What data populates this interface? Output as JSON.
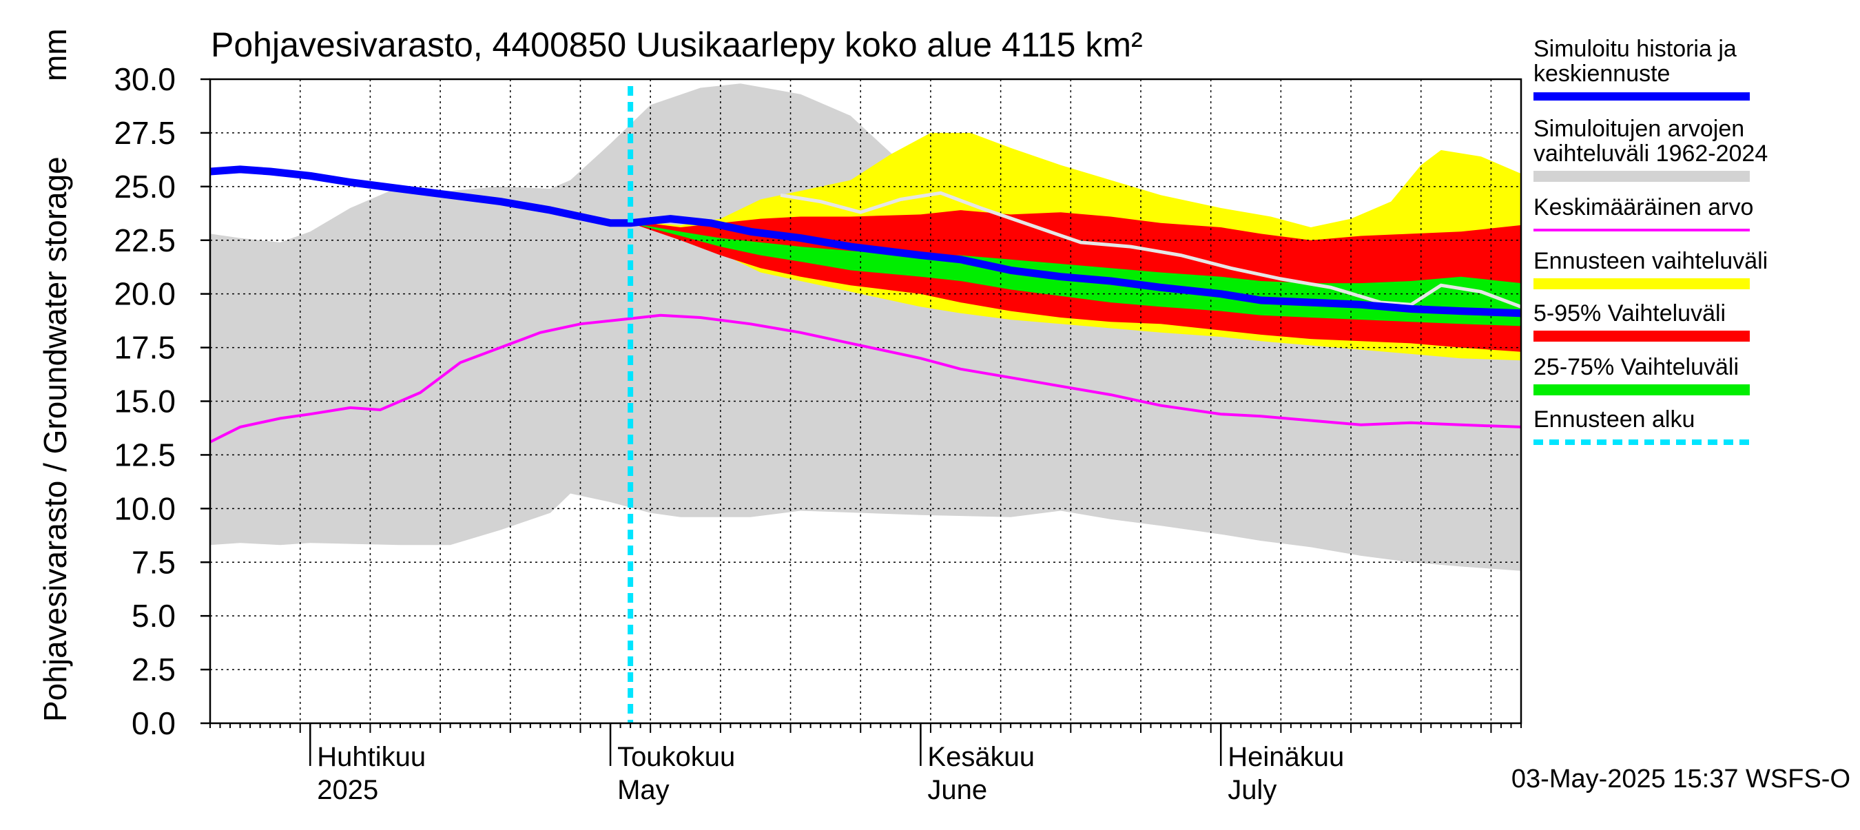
{
  "chart_data": {
    "type": "area",
    "title": "Pohjavesivarasto, 4400850 Uusikaarlepy koko alue 4115 km²",
    "ylabel": "Pohjavesivarasto / Groundwater storage",
    "yunit": "mm",
    "ylim": [
      0,
      30
    ],
    "yticks": [
      "0.0",
      "2.5",
      "5.0",
      "7.5",
      "10.0",
      "12.5",
      "15.0",
      "17.5",
      "20.0",
      "22.5",
      "25.0",
      "27.5",
      "30.0"
    ],
    "xlim": [
      "2025-03-22",
      "2025-07-31"
    ],
    "x_labels": [
      {
        "date": "2025-04-01",
        "line1": "Huhtikuu",
        "line2": "2025"
      },
      {
        "date": "2025-05-01",
        "line1": "Toukokuu",
        "line2": "May"
      },
      {
        "date": "2025-06-01",
        "line1": "Kesäkuu",
        "line2": "June"
      },
      {
        "date": "2025-07-01",
        "line1": "Heinäkuu",
        "line2": "July"
      }
    ],
    "forecast_start": "2025-05-03",
    "grid": true,
    "legend_position": "right",
    "footer": "03-May-2025 15:37 WSFS-O",
    "colors": {
      "history": "#0000ff",
      "range": "#d3d3d3",
      "mean": "#ff00ff",
      "forecast_range": "#ffff00",
      "p5_95": "#ff0000",
      "p25_75": "#00ee00",
      "forecast_start": "#00e5ff",
      "grey_line": "#e6e6e6"
    },
    "legend": [
      {
        "key": "history",
        "label": [
          "Simuloitu historia ja",
          "keskiennuste"
        ],
        "style": "thick"
      },
      {
        "key": "range",
        "label": [
          "Simuloitujen arvojen",
          "vaihteluväli 1962-2024"
        ],
        "style": "band"
      },
      {
        "key": "mean",
        "label": [
          "Keskimääräinen arvo"
        ],
        "style": "thin"
      },
      {
        "key": "forecast_range",
        "label": [
          "Ennusteen vaihteluväli"
        ],
        "style": "band"
      },
      {
        "key": "p5_95",
        "label": [
          "5-95% Vaihteluväli"
        ],
        "style": "band"
      },
      {
        "key": "p25_75",
        "label": [
          "25-75% Vaihteluväli"
        ],
        "style": "band"
      },
      {
        "key": "forecast_start",
        "label": [
          "Ennusteen alku"
        ],
        "style": "dashed"
      }
    ],
    "series": {
      "range_upper": [
        [
          "2025-03-22",
          22.8
        ],
        [
          "2025-03-25",
          22.6
        ],
        [
          "2025-03-29",
          22.4
        ],
        [
          "2025-04-01",
          22.9
        ],
        [
          "2025-04-05",
          24.0
        ],
        [
          "2025-04-10",
          25.0
        ],
        [
          "2025-04-15",
          24.8
        ],
        [
          "2025-04-20",
          25.0
        ],
        [
          "2025-04-25",
          24.9
        ],
        [
          "2025-04-27",
          25.3
        ],
        [
          "2025-05-01",
          27.0
        ],
        [
          "2025-05-05",
          28.8
        ],
        [
          "2025-05-10",
          29.6
        ],
        [
          "2025-05-14",
          29.8
        ],
        [
          "2025-05-20",
          29.3
        ],
        [
          "2025-05-25",
          28.3
        ],
        [
          "2025-05-28",
          27.0
        ],
        [
          "2025-06-01",
          25.3
        ],
        [
          "2025-06-05",
          24.5
        ],
        [
          "2025-06-10",
          23.9
        ],
        [
          "2025-06-15",
          23.1
        ],
        [
          "2025-06-20",
          22.4
        ],
        [
          "2025-06-25",
          21.8
        ],
        [
          "2025-07-01",
          21.3
        ],
        [
          "2025-07-05",
          20.9
        ],
        [
          "2025-07-10",
          20.5
        ],
        [
          "2025-07-15",
          20.0
        ],
        [
          "2025-07-20",
          19.7
        ],
        [
          "2025-07-25",
          19.5
        ],
        [
          "2025-07-31",
          19.3
        ]
      ],
      "range_lower": [
        [
          "2025-03-22",
          8.3
        ],
        [
          "2025-03-25",
          8.4
        ],
        [
          "2025-03-29",
          8.3
        ],
        [
          "2025-04-01",
          8.4
        ],
        [
          "2025-04-10",
          8.3
        ],
        [
          "2025-04-15",
          8.3
        ],
        [
          "2025-04-20",
          9.0
        ],
        [
          "2025-04-25",
          9.8
        ],
        [
          "2025-04-27",
          10.7
        ],
        [
          "2025-05-01",
          10.3
        ],
        [
          "2025-05-05",
          9.8
        ],
        [
          "2025-05-08",
          9.6
        ],
        [
          "2025-05-15",
          9.6
        ],
        [
          "2025-05-20",
          9.9
        ],
        [
          "2025-06-01",
          9.7
        ],
        [
          "2025-06-10",
          9.6
        ],
        [
          "2025-06-15",
          9.9
        ],
        [
          "2025-06-20",
          9.5
        ],
        [
          "2025-06-25",
          9.2
        ],
        [
          "2025-07-01",
          8.8
        ],
        [
          "2025-07-05",
          8.5
        ],
        [
          "2025-07-10",
          8.2
        ],
        [
          "2025-07-15",
          7.8
        ],
        [
          "2025-07-20",
          7.5
        ],
        [
          "2025-07-25",
          7.3
        ],
        [
          "2025-07-31",
          7.1
        ]
      ],
      "forecast_upper": [
        [
          "2025-05-03",
          23.4
        ],
        [
          "2025-05-08",
          23.2
        ],
        [
          "2025-05-12",
          23.5
        ],
        [
          "2025-05-16",
          24.4
        ],
        [
          "2025-05-20",
          24.8
        ],
        [
          "2025-05-25",
          25.3
        ],
        [
          "2025-05-29",
          26.5
        ],
        [
          "2025-06-02",
          27.5
        ],
        [
          "2025-06-06",
          27.5
        ],
        [
          "2025-06-10",
          26.8
        ],
        [
          "2025-06-15",
          26.0
        ],
        [
          "2025-06-20",
          25.3
        ],
        [
          "2025-06-25",
          24.6
        ],
        [
          "2025-07-01",
          24.0
        ],
        [
          "2025-07-06",
          23.6
        ],
        [
          "2025-07-10",
          23.1
        ],
        [
          "2025-07-14",
          23.5
        ],
        [
          "2025-07-18",
          24.3
        ],
        [
          "2025-07-21",
          26.0
        ],
        [
          "2025-07-23",
          26.7
        ],
        [
          "2025-07-27",
          26.4
        ],
        [
          "2025-07-31",
          25.6
        ]
      ],
      "forecast_lower": [
        [
          "2025-05-03",
          23.3
        ],
        [
          "2025-05-08",
          22.6
        ],
        [
          "2025-05-12",
          21.9
        ],
        [
          "2025-05-16",
          21.0
        ],
        [
          "2025-05-20",
          20.6
        ],
        [
          "2025-05-25",
          20.1
        ],
        [
          "2025-06-01",
          19.4
        ],
        [
          "2025-06-05",
          19.1
        ],
        [
          "2025-06-10",
          18.8
        ],
        [
          "2025-06-15",
          18.6
        ],
        [
          "2025-06-20",
          18.4
        ],
        [
          "2025-06-25",
          18.2
        ],
        [
          "2025-07-01",
          18.0
        ],
        [
          "2025-07-05",
          17.8
        ],
        [
          "2025-07-10",
          17.6
        ],
        [
          "2025-07-15",
          17.4
        ],
        [
          "2025-07-20",
          17.2
        ],
        [
          "2025-07-25",
          17.0
        ],
        [
          "2025-07-31",
          16.9
        ]
      ],
      "p95": [
        [
          "2025-05-03",
          23.4
        ],
        [
          "2025-05-08",
          23.1
        ],
        [
          "2025-05-12",
          23.3
        ],
        [
          "2025-05-16",
          23.5
        ],
        [
          "2025-05-20",
          23.6
        ],
        [
          "2025-05-25",
          23.6
        ],
        [
          "2025-06-01",
          23.7
        ],
        [
          "2025-06-05",
          23.9
        ],
        [
          "2025-06-10",
          23.7
        ],
        [
          "2025-06-15",
          23.8
        ],
        [
          "2025-06-20",
          23.6
        ],
        [
          "2025-06-25",
          23.3
        ],
        [
          "2025-07-01",
          23.1
        ],
        [
          "2025-07-05",
          22.8
        ],
        [
          "2025-07-10",
          22.5
        ],
        [
          "2025-07-15",
          22.7
        ],
        [
          "2025-07-20",
          22.8
        ],
        [
          "2025-07-25",
          22.9
        ],
        [
          "2025-07-31",
          23.2
        ]
      ],
      "p5": [
        [
          "2025-05-03",
          23.3
        ],
        [
          "2025-05-08",
          22.5
        ],
        [
          "2025-05-12",
          21.8
        ],
        [
          "2025-05-16",
          21.2
        ],
        [
          "2025-05-20",
          20.8
        ],
        [
          "2025-05-25",
          20.4
        ],
        [
          "2025-06-01",
          20.0
        ],
        [
          "2025-06-05",
          19.6
        ],
        [
          "2025-06-10",
          19.2
        ],
        [
          "2025-06-15",
          18.9
        ],
        [
          "2025-06-20",
          18.7
        ],
        [
          "2025-06-25",
          18.6
        ],
        [
          "2025-07-01",
          18.3
        ],
        [
          "2025-07-05",
          18.1
        ],
        [
          "2025-07-10",
          17.9
        ],
        [
          "2025-07-15",
          17.8
        ],
        [
          "2025-07-20",
          17.7
        ],
        [
          "2025-07-25",
          17.5
        ],
        [
          "2025-07-31",
          17.3
        ]
      ],
      "p75": [
        [
          "2025-05-03",
          23.3
        ],
        [
          "2025-05-08",
          22.9
        ],
        [
          "2025-05-12",
          22.6
        ],
        [
          "2025-05-16",
          22.4
        ],
        [
          "2025-05-20",
          22.2
        ],
        [
          "2025-05-25",
          22.0
        ],
        [
          "2025-06-01",
          21.8
        ],
        [
          "2025-06-05",
          21.8
        ],
        [
          "2025-06-10",
          21.6
        ],
        [
          "2025-06-15",
          21.4
        ],
        [
          "2025-06-20",
          21.2
        ],
        [
          "2025-06-25",
          21.0
        ],
        [
          "2025-07-01",
          20.8
        ],
        [
          "2025-07-05",
          20.6
        ],
        [
          "2025-07-10",
          20.5
        ],
        [
          "2025-07-15",
          20.5
        ],
        [
          "2025-07-20",
          20.6
        ],
        [
          "2025-07-25",
          20.8
        ],
        [
          "2025-07-31",
          20.5
        ]
      ],
      "p25": [
        [
          "2025-05-03",
          23.3
        ],
        [
          "2025-05-08",
          22.7
        ],
        [
          "2025-05-12",
          22.2
        ],
        [
          "2025-05-16",
          21.8
        ],
        [
          "2025-05-20",
          21.5
        ],
        [
          "2025-05-25",
          21.1
        ],
        [
          "2025-06-01",
          20.8
        ],
        [
          "2025-06-05",
          20.6
        ],
        [
          "2025-06-10",
          20.2
        ],
        [
          "2025-06-15",
          19.9
        ],
        [
          "2025-06-20",
          19.6
        ],
        [
          "2025-06-25",
          19.4
        ],
        [
          "2025-07-01",
          19.2
        ],
        [
          "2025-07-05",
          19.0
        ],
        [
          "2025-07-10",
          18.9
        ],
        [
          "2025-07-15",
          18.8
        ],
        [
          "2025-07-20",
          18.7
        ],
        [
          "2025-07-25",
          18.6
        ],
        [
          "2025-07-31",
          18.5
        ]
      ],
      "history": [
        [
          "2025-03-22",
          25.7
        ],
        [
          "2025-03-25",
          25.8
        ],
        [
          "2025-03-28",
          25.7
        ],
        [
          "2025-04-01",
          25.5
        ],
        [
          "2025-04-05",
          25.2
        ],
        [
          "2025-04-10",
          24.9
        ],
        [
          "2025-04-15",
          24.6
        ],
        [
          "2025-04-20",
          24.3
        ],
        [
          "2025-04-25",
          23.9
        ],
        [
          "2025-04-27",
          23.7
        ],
        [
          "2025-04-29",
          23.5
        ],
        [
          "2025-05-01",
          23.3
        ],
        [
          "2025-05-03",
          23.3
        ],
        [
          "2025-05-07",
          23.5
        ],
        [
          "2025-05-11",
          23.3
        ],
        [
          "2025-05-15",
          22.9
        ],
        [
          "2025-05-20",
          22.6
        ],
        [
          "2025-05-25",
          22.2
        ],
        [
          "2025-06-01",
          21.8
        ],
        [
          "2025-06-05",
          21.6
        ],
        [
          "2025-06-10",
          21.1
        ],
        [
          "2025-06-15",
          20.8
        ],
        [
          "2025-06-20",
          20.6
        ],
        [
          "2025-06-25",
          20.3
        ],
        [
          "2025-07-01",
          20.0
        ],
        [
          "2025-07-05",
          19.7
        ],
        [
          "2025-07-10",
          19.6
        ],
        [
          "2025-07-15",
          19.5
        ],
        [
          "2025-07-20",
          19.3
        ],
        [
          "2025-07-25",
          19.2
        ],
        [
          "2025-07-31",
          19.1
        ]
      ],
      "grey_line": [
        [
          "2025-05-18",
          24.6
        ],
        [
          "2025-05-22",
          24.3
        ],
        [
          "2025-05-26",
          23.8
        ],
        [
          "2025-05-30",
          24.4
        ],
        [
          "2025-06-03",
          24.7
        ],
        [
          "2025-06-07",
          24.0
        ],
        [
          "2025-06-12",
          23.2
        ],
        [
          "2025-06-17",
          22.4
        ],
        [
          "2025-06-22",
          22.2
        ],
        [
          "2025-06-27",
          21.8
        ],
        [
          "2025-07-02",
          21.2
        ],
        [
          "2025-07-07",
          20.7
        ],
        [
          "2025-07-12",
          20.3
        ],
        [
          "2025-07-17",
          19.6
        ],
        [
          "2025-07-20",
          19.5
        ],
        [
          "2025-07-23",
          20.4
        ],
        [
          "2025-07-27",
          20.1
        ],
        [
          "2025-07-31",
          19.4
        ]
      ],
      "mean": [
        [
          "2025-03-22",
          13.1
        ],
        [
          "2025-03-25",
          13.8
        ],
        [
          "2025-03-29",
          14.2
        ],
        [
          "2025-04-01",
          14.4
        ],
        [
          "2025-04-05",
          14.7
        ],
        [
          "2025-04-08",
          14.6
        ],
        [
          "2025-04-12",
          15.4
        ],
        [
          "2025-04-16",
          16.8
        ],
        [
          "2025-04-20",
          17.5
        ],
        [
          "2025-04-24",
          18.2
        ],
        [
          "2025-04-28",
          18.6
        ],
        [
          "2025-05-02",
          18.8
        ],
        [
          "2025-05-06",
          19.0
        ],
        [
          "2025-05-10",
          18.9
        ],
        [
          "2025-05-15",
          18.6
        ],
        [
          "2025-05-20",
          18.2
        ],
        [
          "2025-05-25",
          17.7
        ],
        [
          "2025-06-01",
          17.0
        ],
        [
          "2025-06-05",
          16.5
        ],
        [
          "2025-06-10",
          16.1
        ],
        [
          "2025-06-15",
          15.7
        ],
        [
          "2025-06-20",
          15.3
        ],
        [
          "2025-06-25",
          14.8
        ],
        [
          "2025-07-01",
          14.4
        ],
        [
          "2025-07-05",
          14.3
        ],
        [
          "2025-07-10",
          14.1
        ],
        [
          "2025-07-15",
          13.9
        ],
        [
          "2025-07-20",
          14.0
        ],
        [
          "2025-07-25",
          13.9
        ],
        [
          "2025-07-31",
          13.8
        ]
      ]
    }
  }
}
